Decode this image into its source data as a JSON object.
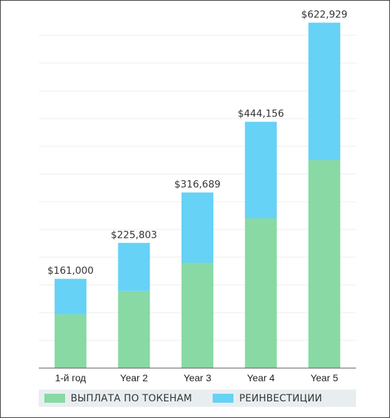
{
  "chart_data": {
    "type": "bar",
    "stacked": true,
    "categories": [
      "1-й год",
      "Year 2",
      "Year 3",
      "Year 4",
      "Year 5"
    ],
    "series": [
      {
        "name": "ВЫПЛАТА ПО ТОКЕНАМ",
        "color": "#88d9a4",
        "values": [
          97000,
          139000,
          190000,
          270000,
          375000
        ]
      },
      {
        "name": "РЕИНВЕСТИЦИИ",
        "color": "#66d2f5",
        "values": [
          64000,
          86803,
          126689,
          174156,
          247929
        ]
      }
    ],
    "totals": [
      161000,
      225803,
      316689,
      444156,
      622929
    ],
    "total_labels": [
      "$161,000",
      "$225,803",
      "$316,689",
      "$444,156",
      "$622,929"
    ],
    "ylim": [
      0,
      625000
    ],
    "grid": true,
    "legend_position": "bottom",
    "title": "",
    "xlabel": "",
    "ylabel": ""
  }
}
